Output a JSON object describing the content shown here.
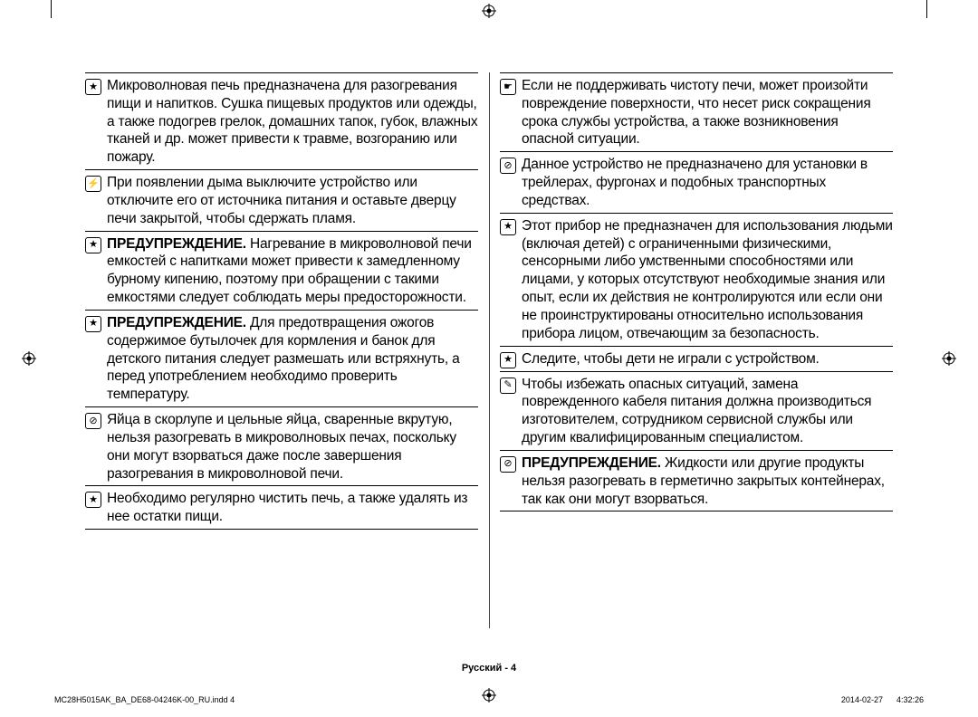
{
  "icons": {
    "star": "★",
    "plug": "⚡",
    "prohibit": "⊘",
    "hand": "☛",
    "tool": "✎"
  },
  "left": [
    {
      "icon": "star",
      "bold": "",
      "text": "Микроволновая печь предназначена для разогревания пищи и напитков. Сушка пищевых продуктов или одежды, а также подогрев грелок, домашних тапок, губок, влажных тканей и др. может привести к травме, возгоранию или пожару."
    },
    {
      "icon": "plug",
      "bold": "",
      "text": "При появлении дыма выключите устройство или отключите его от источника питания и оставьте дверцу печи закрытой, чтобы сдержать пламя."
    },
    {
      "icon": "star",
      "bold": "ПРЕДУПРЕЖДЕНИЕ.",
      "text": " Нагревание в микроволновой печи емкостей с напитками может привести к замедленному бурному кипению, поэтому при обращении с такими емкостями следует соблюдать меры предосторожности."
    },
    {
      "icon": "star",
      "bold": "ПРЕДУПРЕЖДЕНИЕ.",
      "text": " Для предотвращения ожогов содержимое бутылочек для кормления и банок для детского питания следует размешать или встряхнуть, а перед употреблением необходимо проверить температуру."
    },
    {
      "icon": "prohibit",
      "bold": "",
      "text": "Яйца в скорлупе и цельные яйца, сваренные вкрутую, нельзя разогревать в микроволновых печах, поскольку они могут взорваться даже после завершения разогревания в микроволновой печи."
    },
    {
      "icon": "star",
      "bold": "",
      "text": "Необходимо регулярно чистить печь, а также удалять из нее остатки пищи."
    }
  ],
  "right": [
    {
      "icon": "hand",
      "bold": "",
      "text": "Если не поддерживать чистоту печи, может произойти повреждение поверхности, что несет риск сокращения срока службы устройства, а также возникновения опасной ситуации."
    },
    {
      "icon": "prohibit",
      "bold": "",
      "text": "Данное устройство не предназначено для установки в трейлерах, фургонах и подобных транспортных средствах."
    },
    {
      "icon": "star",
      "bold": "",
      "text": "Этот прибор не предназначен для использования людьми (включая детей) с ограниченными физическими, сенсорными либо умственными способностями или лицами, у которых отсутствуют необходимые знания или опыт, если их действия не контролируются или если они не проинструктированы относительно использования прибора лицом, отвечающим за безопасность."
    },
    {
      "icon": "star",
      "bold": "",
      "text": "Следите, чтобы дети не играли с устройством."
    },
    {
      "icon": "tool",
      "bold": "",
      "text": "Чтобы избежать опасных ситуаций, замена поврежденного кабеля питания должна производиться изготовителем, сотрудником сервисной службы или другим квалифицированным специалистом."
    },
    {
      "icon": "prohibit",
      "bold": "ПРЕДУПРЕЖДЕНИЕ.",
      "text": " Жидкости или другие продукты нельзя разогревать в герметично закрытых контейнерах, так как они могут взорваться."
    }
  ],
  "footer": {
    "page": "Русский - 4",
    "left": "MC28H5015AK_BA_DE68-04246K-00_RU.indd   4",
    "right": "2014-02-27      4:32:26"
  }
}
